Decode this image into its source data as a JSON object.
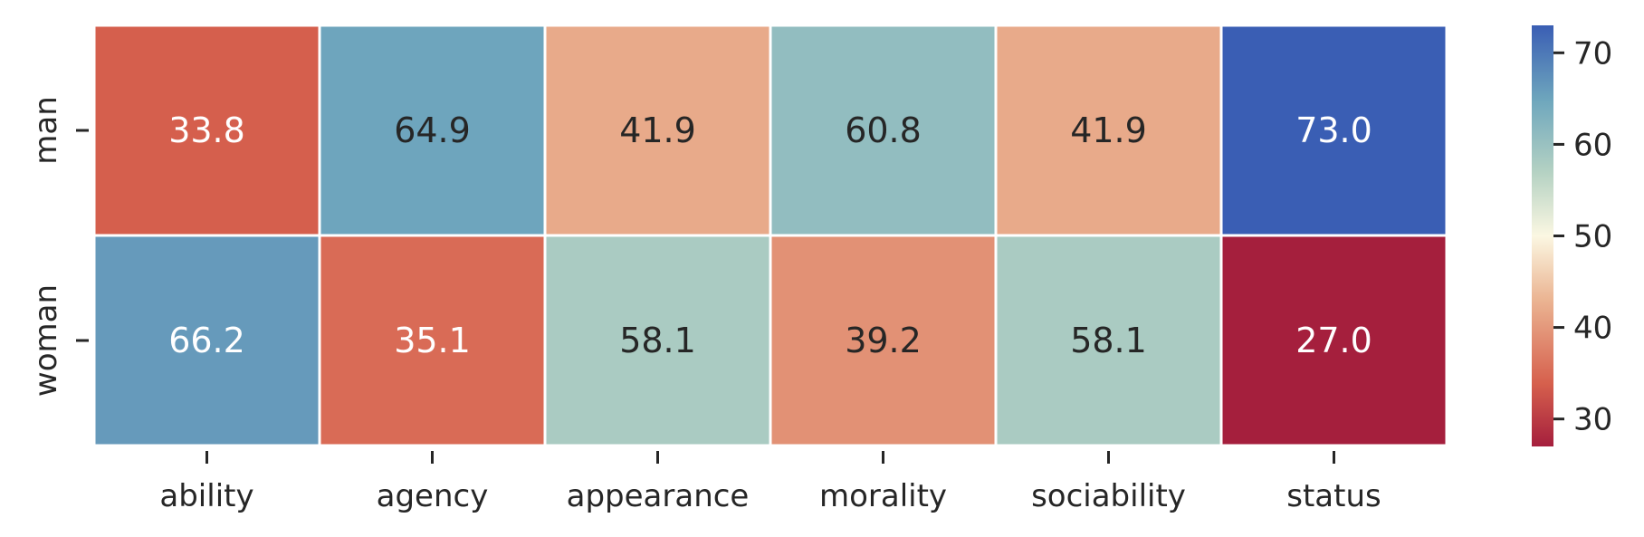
{
  "chart_data": {
    "type": "heatmap",
    "rows": [
      "man",
      "woman"
    ],
    "columns": [
      "ability",
      "agency",
      "appearance",
      "morality",
      "sociability",
      "status"
    ],
    "values": [
      [
        33.8,
        64.9,
        41.9,
        60.8,
        41.9,
        73.0
      ],
      [
        66.2,
        35.1,
        58.1,
        39.2,
        58.1,
        27.0
      ]
    ],
    "value_labels": [
      [
        "33.8",
        "64.9",
        "41.9",
        "60.8",
        "41.9",
        "73.0"
      ],
      [
        "66.2",
        "35.1",
        "58.1",
        "39.2",
        "58.1",
        "27.0"
      ]
    ],
    "colormap": "RdYlBu",
    "vmin": 27.0,
    "vmax": 73.0,
    "colorbar_ticks": [
      30,
      40,
      50,
      60,
      70
    ],
    "colorbar_tick_labels": [
      "30",
      "40",
      "50",
      "60",
      "70"
    ],
    "colors": {
      "low": "#a51f3d",
      "mid": "#fbf7e2",
      "high": "#3a5eb4",
      "cell_border": "#ffffff",
      "dark_text": "#262626",
      "light_text": "#ffffff"
    }
  }
}
